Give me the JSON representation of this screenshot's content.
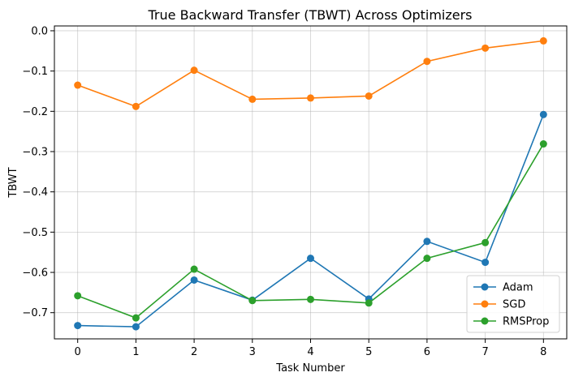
{
  "chart_data": {
    "type": "line",
    "title": "True Backward Transfer (TBWT) Across Optimizers",
    "xlabel": "Task Number",
    "ylabel": "TBWT",
    "x": [
      0,
      1,
      2,
      3,
      4,
      5,
      6,
      7,
      8
    ],
    "xlim": [
      -0.4,
      8.4
    ],
    "ylim": [
      -0.765,
      0.012
    ],
    "xticks": [
      "0",
      "1",
      "2",
      "3",
      "4",
      "5",
      "6",
      "7",
      "8"
    ],
    "yticks": [
      "0.0",
      "−0.1",
      "−0.2",
      "−0.3",
      "−0.4",
      "−0.5",
      "−0.6",
      "−0.7"
    ],
    "grid": true,
    "legend_position": "bottom-right",
    "series": [
      {
        "name": "Adam",
        "color": "#1f77b4",
        "values": [
          -0.732,
          -0.735,
          -0.619,
          -0.669,
          -0.565,
          -0.666,
          -0.523,
          -0.575,
          -0.208
        ]
      },
      {
        "name": "SGD",
        "color": "#ff7f0e",
        "values": [
          -0.135,
          -0.188,
          -0.098,
          -0.17,
          -0.167,
          -0.162,
          -0.076,
          -0.043,
          -0.025
        ]
      },
      {
        "name": "RMSProp",
        "color": "#2ca02c",
        "values": [
          -0.658,
          -0.713,
          -0.592,
          -0.67,
          -0.667,
          -0.676,
          -0.565,
          -0.526,
          -0.281
        ]
      }
    ]
  }
}
